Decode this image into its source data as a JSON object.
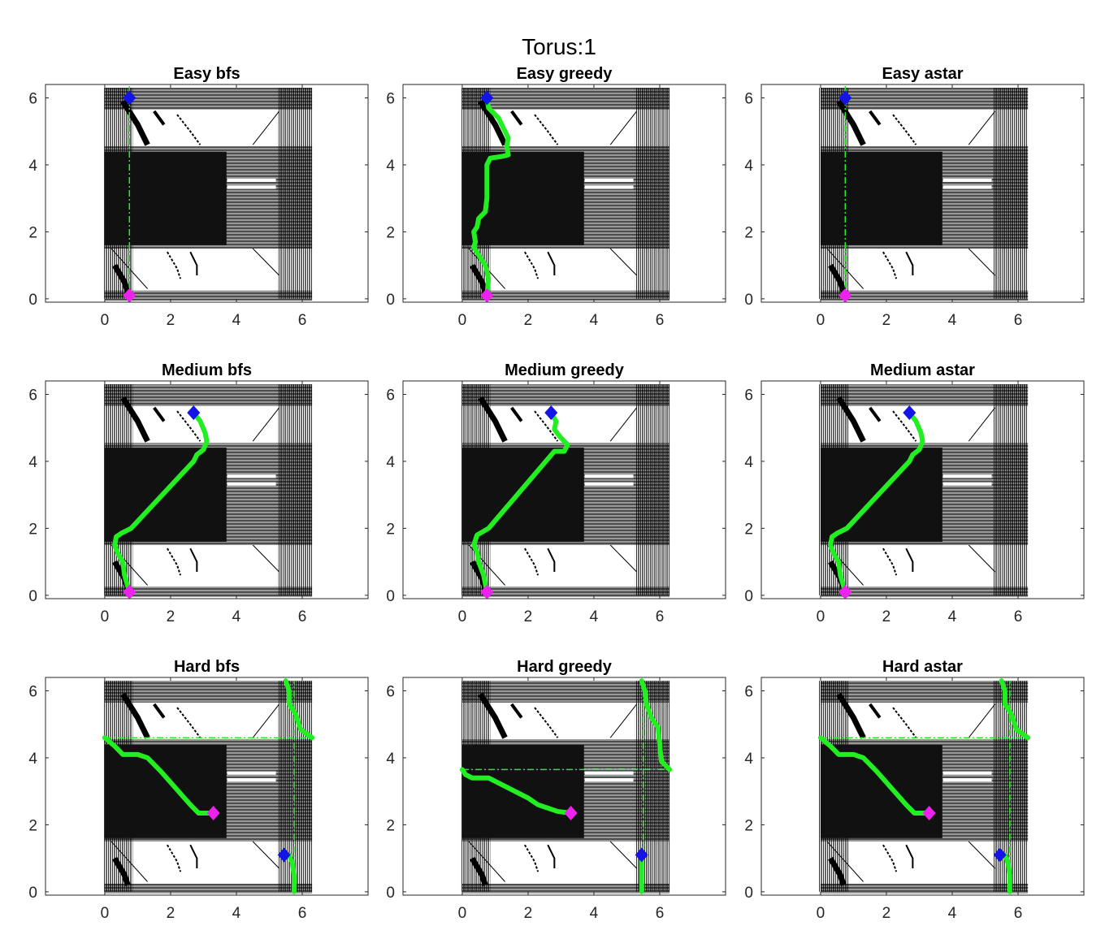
{
  "figure": {
    "suptitle": "Torus:1"
  },
  "colors": {
    "background": "#ffffff",
    "obstacle_arrows": "#000000",
    "path": "#22ee22",
    "start_marker": "#1414e6",
    "goal_marker": "#ee22ee",
    "axes": "#262626"
  },
  "chart_data": [
    {
      "type": "line",
      "title": "Easy bfs",
      "xlim": [
        -1.8,
        8.0
      ],
      "ylim": [
        -0.1,
        6.4
      ],
      "xticks": [
        0,
        2,
        4,
        6
      ],
      "yticks": [
        0,
        2,
        4,
        6
      ],
      "start": [
        0.75,
        6.0
      ],
      "goal": [
        0.75,
        0.1
      ],
      "path": [
        [
          [
            0.75,
            6.35
          ],
          [
            0.75,
            0.1
          ]
        ]
      ],
      "path_style": "dashdot",
      "wrap_lines": []
    },
    {
      "type": "line",
      "title": "Easy greedy",
      "xlim": [
        -1.8,
        8.0
      ],
      "ylim": [
        -0.1,
        6.4
      ],
      "xticks": [
        0,
        2,
        4,
        6
      ],
      "yticks": [
        0,
        2,
        4,
        6
      ],
      "start": [
        0.75,
        6.0
      ],
      "goal": [
        0.75,
        0.1
      ],
      "path": [
        [
          [
            0.75,
            6.0
          ],
          [
            0.8,
            5.7
          ],
          [
            1.1,
            5.4
          ],
          [
            1.3,
            5.0
          ],
          [
            1.4,
            4.8
          ],
          [
            1.35,
            4.55
          ],
          [
            1.4,
            4.3
          ],
          [
            1.2,
            4.25
          ],
          [
            0.85,
            4.2
          ],
          [
            0.75,
            4.0
          ],
          [
            0.75,
            3.0
          ],
          [
            0.7,
            2.6
          ],
          [
            0.5,
            2.4
          ],
          [
            0.45,
            2.15
          ],
          [
            0.35,
            2.0
          ],
          [
            0.4,
            1.7
          ],
          [
            0.35,
            1.55
          ],
          [
            0.5,
            1.3
          ],
          [
            0.7,
            1.0
          ],
          [
            0.8,
            0.6
          ],
          [
            0.75,
            0.1
          ]
        ]
      ],
      "path_style": "solid",
      "wrap_lines": []
    },
    {
      "type": "line",
      "title": "Easy astar",
      "xlim": [
        -1.8,
        8.0
      ],
      "ylim": [
        -0.1,
        6.4
      ],
      "xticks": [
        0,
        2,
        4,
        6
      ],
      "yticks": [
        0,
        2,
        4,
        6
      ],
      "start": [
        0.75,
        6.0
      ],
      "goal": [
        0.75,
        0.1
      ],
      "path": [
        [
          [
            0.75,
            6.35
          ],
          [
            0.75,
            0.1
          ]
        ]
      ],
      "path_style": "dashdot",
      "wrap_lines": []
    },
    {
      "type": "line",
      "title": "Medium bfs",
      "xlim": [
        -1.8,
        8.0
      ],
      "ylim": [
        -0.1,
        6.4
      ],
      "xticks": [
        0,
        2,
        4,
        6
      ],
      "yticks": [
        0,
        2,
        4,
        6
      ],
      "start": [
        2.7,
        5.45
      ],
      "goal": [
        0.75,
        0.1
      ],
      "path": [
        [
          [
            2.7,
            5.45
          ],
          [
            2.9,
            5.2
          ],
          [
            3.05,
            4.85
          ],
          [
            3.1,
            4.6
          ],
          [
            3.0,
            4.35
          ],
          [
            2.8,
            4.2
          ],
          [
            2.7,
            4.0
          ],
          [
            0.8,
            2.0
          ],
          [
            0.5,
            1.85
          ],
          [
            0.35,
            1.75
          ],
          [
            0.3,
            1.5
          ],
          [
            0.4,
            1.25
          ],
          [
            0.55,
            1.0
          ],
          [
            0.6,
            0.6
          ],
          [
            0.75,
            0.1
          ]
        ]
      ],
      "path_style": "solid",
      "wrap_lines": []
    },
    {
      "type": "line",
      "title": "Medium greedy",
      "xlim": [
        -1.8,
        8.0
      ],
      "ylim": [
        -0.1,
        6.4
      ],
      "xticks": [
        0,
        2,
        4,
        6
      ],
      "yticks": [
        0,
        2,
        4,
        6
      ],
      "start": [
        2.7,
        5.45
      ],
      "goal": [
        0.75,
        0.1
      ],
      "path": [
        [
          [
            2.7,
            5.45
          ],
          [
            2.85,
            5.2
          ],
          [
            2.8,
            4.95
          ],
          [
            3.0,
            4.7
          ],
          [
            3.2,
            4.5
          ],
          [
            3.1,
            4.3
          ],
          [
            2.8,
            4.3
          ],
          [
            0.8,
            2.0
          ],
          [
            0.45,
            1.8
          ],
          [
            0.35,
            1.5
          ],
          [
            0.45,
            1.3
          ],
          [
            0.5,
            1.0
          ],
          [
            0.65,
            0.6
          ],
          [
            0.75,
            0.1
          ]
        ]
      ],
      "path_style": "solid",
      "wrap_lines": []
    },
    {
      "type": "line",
      "title": "Medium astar",
      "xlim": [
        -1.8,
        8.0
      ],
      "ylim": [
        -0.1,
        6.4
      ],
      "xticks": [
        0,
        2,
        4,
        6
      ],
      "yticks": [
        0,
        2,
        4,
        6
      ],
      "start": [
        2.7,
        5.45
      ],
      "goal": [
        0.75,
        0.1
      ],
      "path": [
        [
          [
            2.7,
            5.45
          ],
          [
            2.9,
            5.2
          ],
          [
            3.05,
            4.85
          ],
          [
            3.1,
            4.6
          ],
          [
            3.0,
            4.35
          ],
          [
            2.8,
            4.2
          ],
          [
            2.7,
            4.0
          ],
          [
            0.8,
            2.0
          ],
          [
            0.5,
            1.85
          ],
          [
            0.35,
            1.75
          ],
          [
            0.3,
            1.5
          ],
          [
            0.4,
            1.25
          ],
          [
            0.55,
            1.0
          ],
          [
            0.6,
            0.6
          ],
          [
            0.75,
            0.1
          ]
        ]
      ],
      "path_style": "solid",
      "wrap_lines": []
    },
    {
      "type": "line",
      "title": "Hard bfs",
      "xlim": [
        -1.8,
        8.0
      ],
      "ylim": [
        -0.1,
        6.4
      ],
      "xticks": [
        0,
        2,
        4,
        6
      ],
      "yticks": [
        0,
        2,
        4,
        6
      ],
      "start": [
        5.45,
        1.1
      ],
      "goal": [
        3.3,
        2.35
      ],
      "path": [
        [
          [
            3.3,
            2.35
          ],
          [
            2.85,
            2.35
          ],
          [
            2.6,
            2.6
          ],
          [
            1.7,
            3.6
          ],
          [
            1.3,
            4.0
          ],
          [
            1.0,
            4.1
          ],
          [
            0.55,
            4.1
          ],
          [
            0.3,
            4.35
          ],
          [
            0.0,
            4.6
          ]
        ],
        [
          [
            6.3,
            4.6
          ],
          [
            5.95,
            4.85
          ],
          [
            5.8,
            5.3
          ],
          [
            5.6,
            5.6
          ],
          [
            5.6,
            6.0
          ],
          [
            5.5,
            6.3
          ]
        ],
        [
          [
            5.6,
            1.1
          ],
          [
            5.7,
            0.85
          ],
          [
            5.75,
            0.5
          ],
          [
            5.75,
            0.0
          ]
        ]
      ],
      "path_style": "solid",
      "wrap_lines": [
        [
          [
            0.0,
            4.6
          ],
          [
            6.3,
            4.6
          ]
        ],
        [
          [
            5.75,
            0.0
          ],
          [
            5.75,
            6.3
          ]
        ]
      ]
    },
    {
      "type": "line",
      "title": "Hard greedy",
      "xlim": [
        -1.8,
        8.0
      ],
      "ylim": [
        -0.1,
        6.4
      ],
      "xticks": [
        0,
        2,
        4,
        6
      ],
      "yticks": [
        0,
        2,
        4,
        6
      ],
      "start": [
        5.45,
        1.1
      ],
      "goal": [
        3.3,
        2.35
      ],
      "path": [
        [
          [
            3.3,
            2.35
          ],
          [
            2.9,
            2.4
          ],
          [
            2.6,
            2.5
          ],
          [
            2.3,
            2.6
          ],
          [
            2.0,
            2.8
          ],
          [
            1.6,
            3.0
          ],
          [
            1.2,
            3.2
          ],
          [
            0.8,
            3.4
          ],
          [
            0.6,
            3.4
          ],
          [
            0.3,
            3.4
          ],
          [
            0.1,
            3.5
          ],
          [
            0.0,
            3.65
          ]
        ],
        [
          [
            6.3,
            3.65
          ],
          [
            6.05,
            3.9
          ],
          [
            6.0,
            4.4
          ],
          [
            5.95,
            4.9
          ],
          [
            5.75,
            5.2
          ],
          [
            5.6,
            5.6
          ],
          [
            5.55,
            6.0
          ],
          [
            5.45,
            6.3
          ]
        ],
        [
          [
            5.45,
            1.1
          ],
          [
            5.45,
            0.6
          ],
          [
            5.45,
            0.0
          ]
        ]
      ],
      "path_style": "solid",
      "wrap_lines": [
        [
          [
            0.0,
            3.65
          ],
          [
            6.3,
            3.65
          ]
        ],
        [
          [
            5.5,
            0.0
          ],
          [
            5.5,
            6.3
          ]
        ]
      ]
    },
    {
      "type": "line",
      "title": "Hard astar",
      "xlim": [
        -1.8,
        8.0
      ],
      "ylim": [
        -0.1,
        6.4
      ],
      "xticks": [
        0,
        2,
        4,
        6
      ],
      "yticks": [
        0,
        2,
        4,
        6
      ],
      "start": [
        5.45,
        1.1
      ],
      "goal": [
        3.3,
        2.35
      ],
      "path": [
        [
          [
            3.3,
            2.35
          ],
          [
            2.85,
            2.35
          ],
          [
            2.6,
            2.6
          ],
          [
            1.7,
            3.6
          ],
          [
            1.3,
            4.0
          ],
          [
            1.0,
            4.1
          ],
          [
            0.55,
            4.1
          ],
          [
            0.3,
            4.35
          ],
          [
            0.0,
            4.6
          ]
        ],
        [
          [
            6.3,
            4.6
          ],
          [
            5.95,
            4.85
          ],
          [
            5.8,
            5.3
          ],
          [
            5.6,
            5.6
          ],
          [
            5.6,
            6.0
          ],
          [
            5.5,
            6.3
          ]
        ],
        [
          [
            5.6,
            1.1
          ],
          [
            5.7,
            0.85
          ],
          [
            5.75,
            0.5
          ],
          [
            5.75,
            0.0
          ]
        ]
      ],
      "path_style": "solid",
      "wrap_lines": [
        [
          [
            0.0,
            4.6
          ],
          [
            6.3,
            4.6
          ]
        ],
        [
          [
            5.75,
            0.0
          ],
          [
            5.75,
            6.3
          ]
        ]
      ]
    }
  ]
}
